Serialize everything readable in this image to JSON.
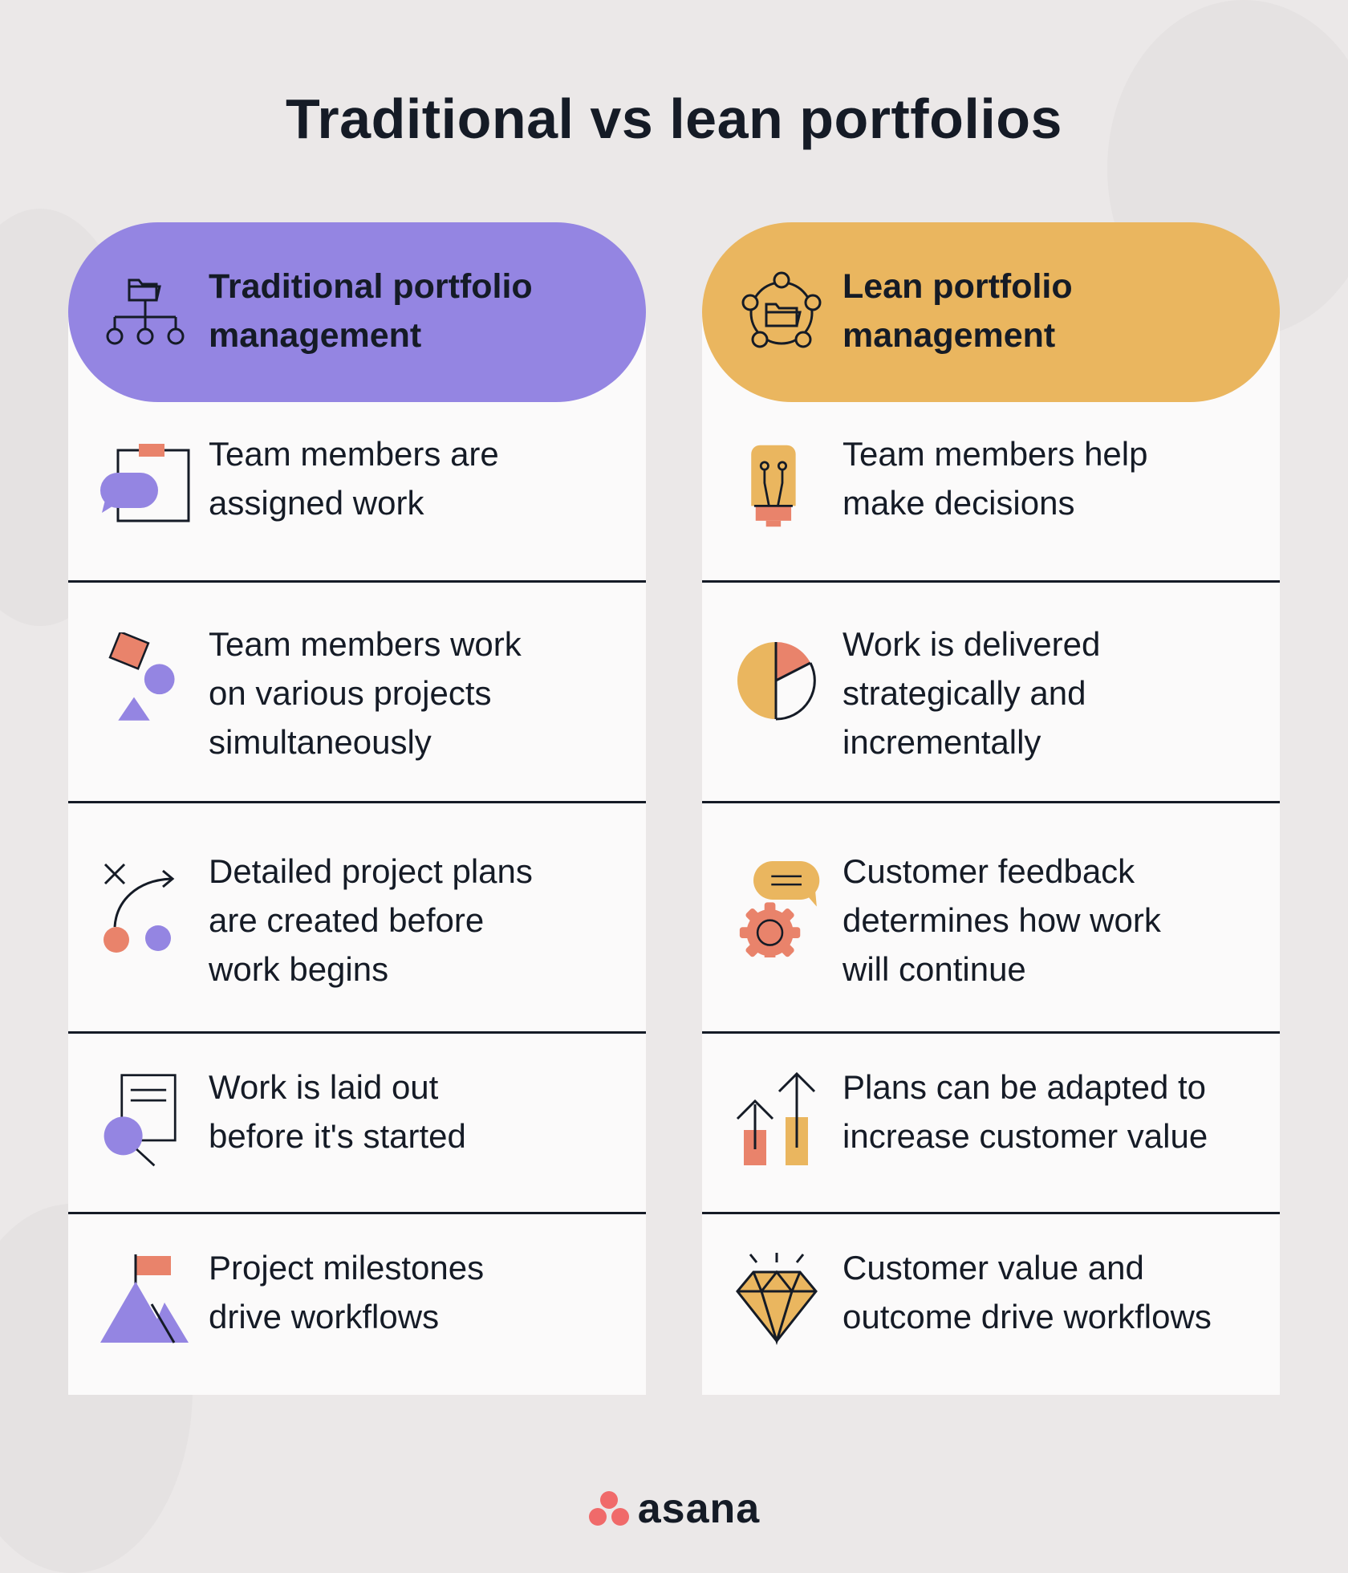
{
  "title": "Traditional vs lean portfolios",
  "colors": {
    "background": "#ebe8e8",
    "panel": "#fbfafa",
    "purple": "#9485e2",
    "orange": "#eab65f",
    "coral": "#e9836b",
    "ink": "#151b26"
  },
  "traditional": {
    "header_line1": "Traditional portfolio",
    "header_line2": "management",
    "header_icon": "org-chart-folder-icon",
    "items": [
      {
        "line1": "Team members are",
        "line2": "assigned work",
        "line3": "",
        "icon": "clipboard-chat-icon"
      },
      {
        "line1": "Team members work",
        "line2": "on various projects",
        "line3": "simultaneously",
        "icon": "shapes-icon"
      },
      {
        "line1": "Detailed project plans",
        "line2": "are created before",
        "line3": "work begins",
        "icon": "plan-path-icon"
      },
      {
        "line1": "Work is laid out",
        "line2": "before it's started",
        "line3": "",
        "icon": "document-magnifier-icon"
      },
      {
        "line1": "Project milestones",
        "line2": "drive workflows",
        "line3": "",
        "icon": "mountain-flag-icon"
      }
    ]
  },
  "lean": {
    "header_line1": "Lean portfolio",
    "header_line2": "management",
    "header_icon": "network-folder-icon",
    "items": [
      {
        "line1": "Team members help",
        "line2": "make decisions",
        "line3": "",
        "icon": "lightbulb-icon"
      },
      {
        "line1": "Work is delivered",
        "line2": "strategically and",
        "line3": "incrementally",
        "icon": "pie-chart-icon"
      },
      {
        "line1": "Customer feedback",
        "line2": "determines how work",
        "line3": "will continue",
        "icon": "chat-gear-icon"
      },
      {
        "line1": "Plans can be adapted to",
        "line2": "increase customer value",
        "line3": "",
        "icon": "growth-arrows-icon"
      },
      {
        "line1": "Customer value and",
        "line2": "outcome drive workflows",
        "line3": "",
        "icon": "diamond-icon"
      }
    ]
  },
  "brand": {
    "name": "asana",
    "icon": "asana-logo-icon"
  }
}
